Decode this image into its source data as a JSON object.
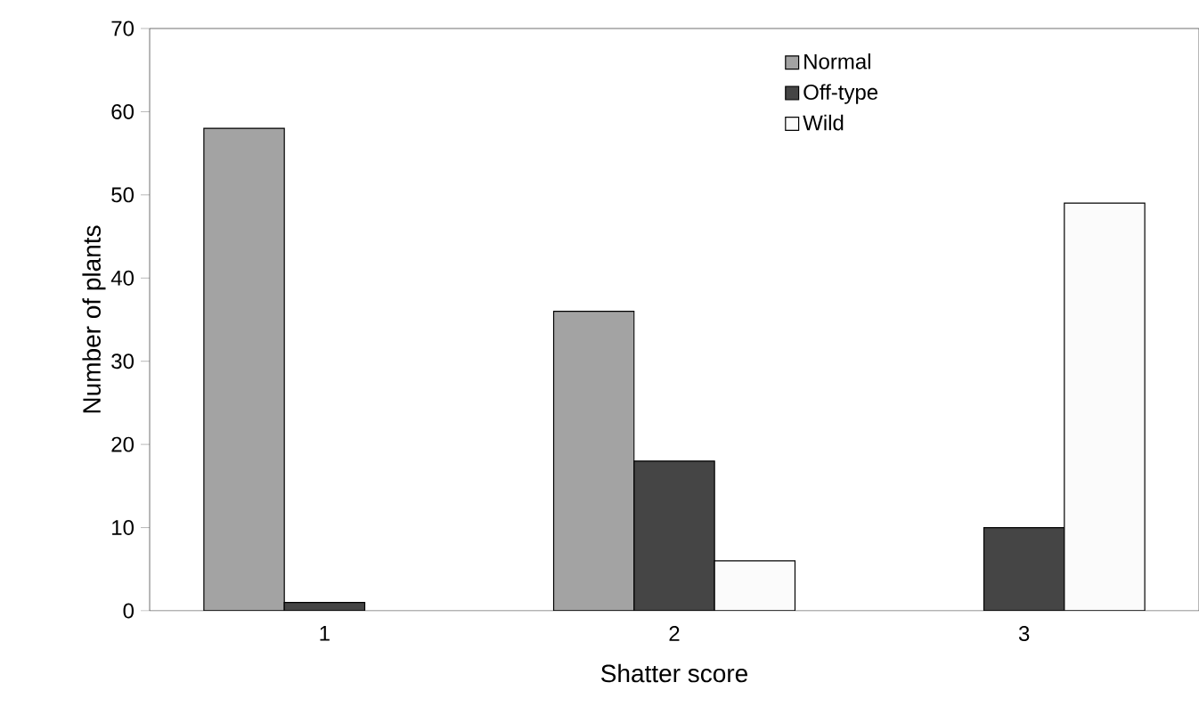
{
  "chart_data": {
    "type": "bar",
    "xlabel": "Shatter score",
    "ylabel": "Number of plants",
    "categories": [
      "1",
      "2",
      "3"
    ],
    "series": [
      {
        "name": "Normal",
        "color": "#a3a3a3",
        "values": [
          58,
          36,
          null
        ]
      },
      {
        "name": "Off-type",
        "color": "#454545",
        "values": [
          1,
          18,
          10
        ]
      },
      {
        "name": "Wild",
        "color": "#fbfbfb",
        "values": [
          null,
          6,
          49
        ]
      }
    ],
    "ylim": [
      0,
      70
    ],
    "yticks": [
      0,
      10,
      20,
      30,
      40,
      50,
      60,
      70
    ],
    "grid": false,
    "legend": "top right"
  }
}
